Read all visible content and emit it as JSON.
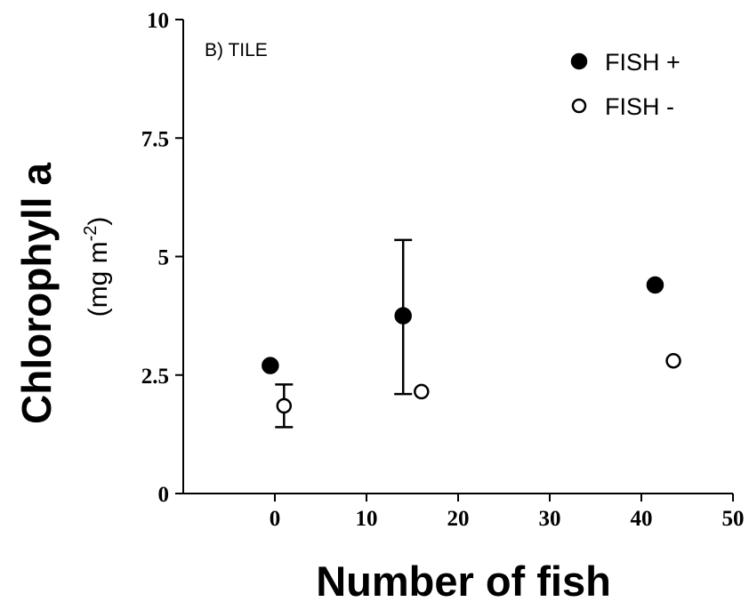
{
  "chart_data": {
    "type": "scatter",
    "panel_label": "B) TILE",
    "xlabel": "Number of fish",
    "ylabel": "Chlorophyll a",
    "ylabel_unit": "(mg m",
    "ylabel_unit_exp": "-2",
    "ylabel_unit_close": ")",
    "xlim": [
      -10,
      50
    ],
    "ylim": [
      0,
      10
    ],
    "xticks": [
      0,
      10,
      20,
      30,
      40,
      50
    ],
    "xtick_labels": [
      "0",
      "10",
      "20",
      "30",
      "40",
      "50"
    ],
    "yticks": [
      0,
      2.5,
      5,
      7.5,
      10
    ],
    "ytick_labels": [
      "0",
      "2.5",
      "5",
      "7.5",
      "10"
    ],
    "grid": false,
    "legend_position": "top-right",
    "series": [
      {
        "name": "FISH +",
        "marker": "filled-circle",
        "color": "#000000",
        "points": [
          {
            "x": -0.5,
            "y": 2.7
          },
          {
            "x": 14,
            "y": 3.75,
            "err_low": 2.1,
            "err_high": 5.35
          },
          {
            "x": 41.5,
            "y": 4.4
          }
        ]
      },
      {
        "name": "FISH -",
        "marker": "open-circle",
        "color": "#000000",
        "points": [
          {
            "x": 1,
            "y": 1.85,
            "err_low": 1.4,
            "err_high": 2.3
          },
          {
            "x": 16,
            "y": 2.15
          },
          {
            "x": 43.5,
            "y": 2.8
          }
        ]
      }
    ]
  }
}
